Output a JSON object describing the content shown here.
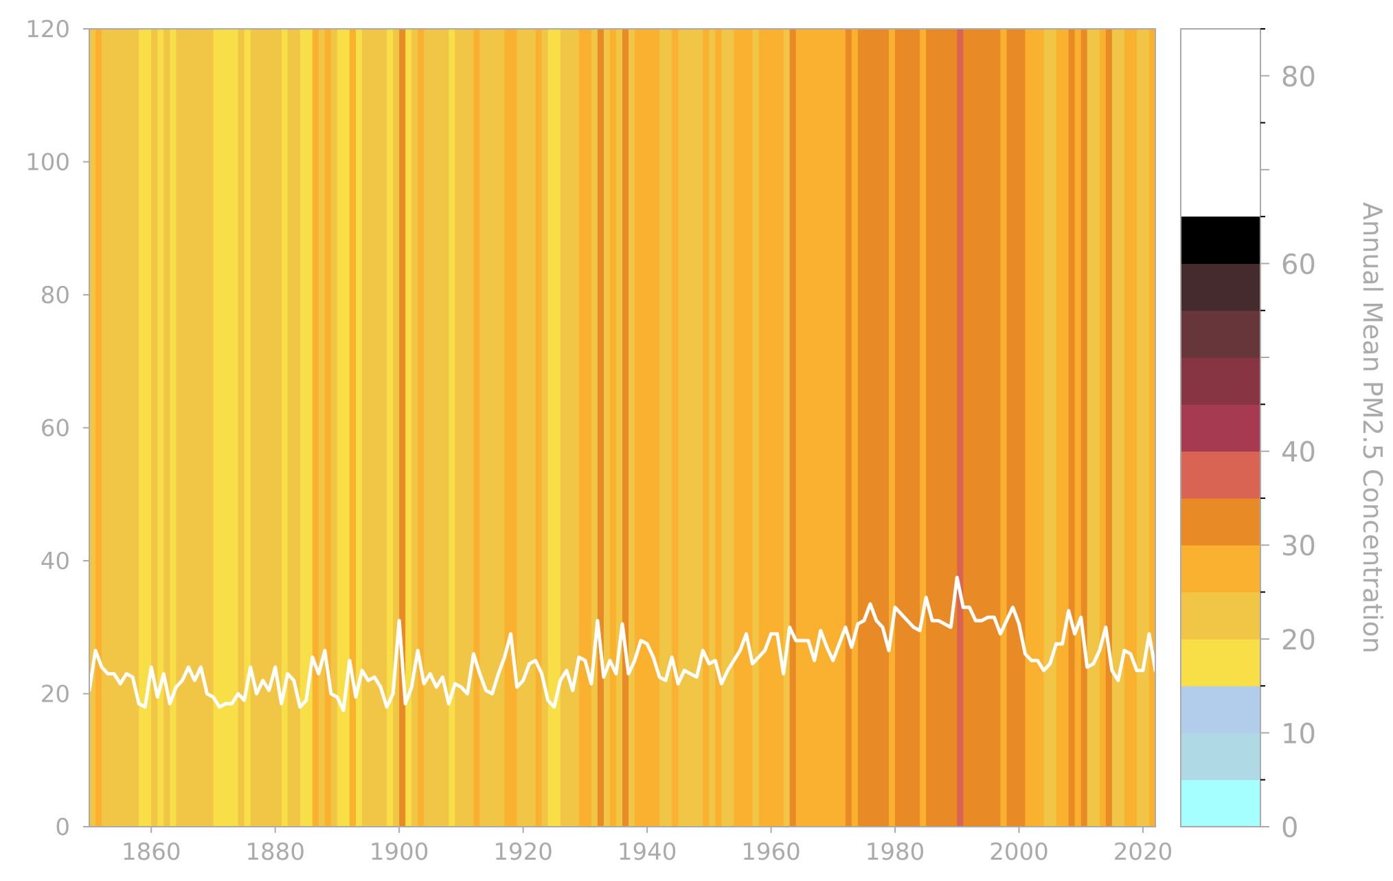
{
  "chart_data": {
    "type": "heatmap",
    "title": "",
    "xlabel": "",
    "ylabel": "",
    "xlim": [
      1850,
      2022
    ],
    "ylim": [
      0,
      120
    ],
    "x_ticks": [
      1860,
      1880,
      1900,
      1920,
      1940,
      1960,
      1980,
      2000,
      2020
    ],
    "y_ticks": [
      0,
      20,
      40,
      60,
      80,
      100,
      120
    ],
    "grid": false,
    "years_start": 1850,
    "series": [
      {
        "type": "line",
        "color": "#ffffff",
        "values": [
          20.5,
          26.5,
          24.0,
          23.0,
          23.0,
          21.5,
          23.0,
          22.5,
          18.5,
          18.0,
          24.0,
          19.5,
          23.0,
          18.5,
          21.0,
          22.0,
          24.0,
          22.0,
          24.0,
          20.0,
          19.5,
          18.0,
          18.5,
          18.5,
          20.0,
          19.0,
          24.0,
          20.0,
          22.0,
          20.5,
          24.0,
          18.5,
          23.0,
          22.0,
          18.0,
          19.0,
          25.5,
          23.0,
          26.5,
          20.0,
          19.5,
          17.5,
          25.0,
          19.5,
          23.5,
          22.0,
          22.5,
          21.0,
          18.0,
          20.0,
          31.0,
          18.5,
          21.0,
          26.5,
          21.5,
          23.0,
          21.0,
          22.5,
          18.5,
          21.5,
          21.0,
          20.0,
          26.0,
          23.0,
          20.5,
          20.0,
          23.0,
          25.5,
          29.0,
          21.0,
          22.0,
          24.5,
          25.0,
          23.0,
          19.0,
          18.0,
          22.0,
          23.5,
          20.5,
          25.5,
          25.0,
          21.5,
          31.0,
          22.5,
          25.0,
          23.0,
          30.5,
          23.0,
          25.0,
          28.0,
          27.5,
          25.5,
          22.5,
          22.0,
          25.5,
          21.5,
          23.5,
          23.0,
          22.5,
          26.5,
          24.5,
          25.0,
          21.5,
          23.5,
          25.0,
          26.5,
          29.0,
          24.5,
          25.5,
          26.5,
          29.0,
          29.0,
          23.0,
          30.0,
          28.0,
          28.0,
          28.0,
          25.0,
          29.5,
          27.0,
          25.0,
          27.5,
          30.0,
          27.0,
          30.5,
          31.0,
          33.5,
          31.0,
          30.0,
          26.5,
          33.0,
          32.0,
          31.0,
          30.0,
          29.5,
          34.5,
          31.0,
          31.0,
          30.5,
          30.0,
          37.5,
          33.0,
          33.0,
          31.0,
          31.0,
          31.5,
          31.5,
          29.0,
          31.0,
          33.0,
          30.5,
          26.0,
          25.0,
          25.0,
          23.5,
          24.5,
          27.5,
          27.5,
          32.5,
          29.0,
          31.5,
          24.0,
          24.5,
          26.5,
          30.0,
          23.5,
          22.0,
          26.5,
          26.0,
          23.5,
          23.5,
          29.0,
          23.5
        ]
      }
    ],
    "colorbar": {
      "label": "Annual Mean PM2.5 Concentration",
      "ticks": [
        0,
        10,
        20,
        30,
        40,
        50,
        60,
        70,
        80
      ],
      "tick_labels": [
        "0",
        "10",
        "20",
        "30",
        "40",
        "",
        "60",
        "",
        "80"
      ],
      "labeled_ticks": [
        0,
        10,
        20,
        30,
        40,
        60,
        80
      ],
      "range": [
        0,
        85
      ],
      "bins": [
        {
          "min": 0,
          "max": 5,
          "color": "#a6ffff"
        },
        {
          "min": 5,
          "max": 10,
          "color": "#b0d9e6"
        },
        {
          "min": 10,
          "max": 15,
          "color": "#b1cdeb"
        },
        {
          "min": 15,
          "max": 20,
          "color": "#f8df47"
        },
        {
          "min": 20,
          "max": 25,
          "color": "#f1c546"
        },
        {
          "min": 25,
          "max": 30,
          "color": "#fab12f"
        },
        {
          "min": 30,
          "max": 35,
          "color": "#e88a26"
        },
        {
          "min": 35,
          "max": 40,
          "color": "#d96454"
        },
        {
          "min": 40,
          "max": 45,
          "color": "#a53a50"
        },
        {
          "min": 45,
          "max": 50,
          "color": "#873542"
        },
        {
          "min": 50,
          "max": 55,
          "color": "#66363a"
        },
        {
          "min": 55,
          "max": 60,
          "color": "#452b2d"
        },
        {
          "min": 60,
          "max": 65,
          "color": "#000000"
        }
      ]
    },
    "colors": {
      "axis": "#aaaaaa",
      "line": "#ffffff"
    }
  }
}
